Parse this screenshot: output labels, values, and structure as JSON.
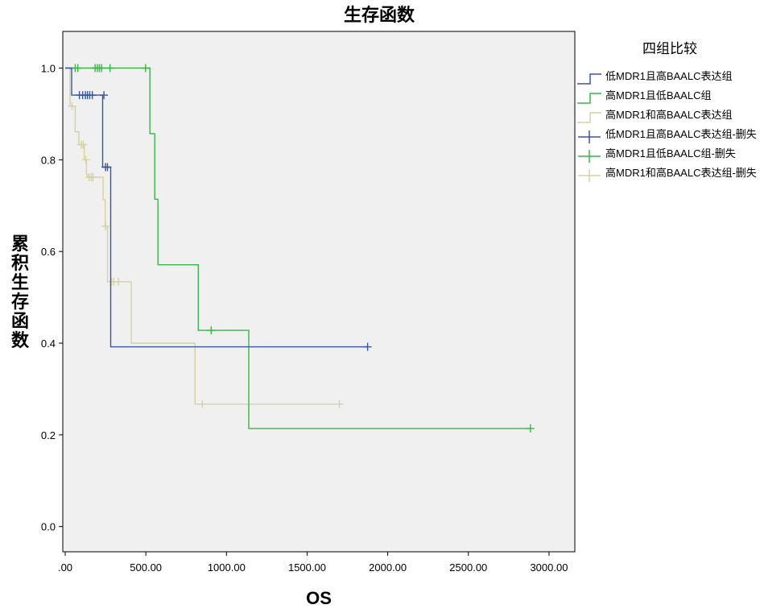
{
  "chart_data": {
    "type": "line",
    "title": "生存函数",
    "xlabel": "OS",
    "ylabel": "累积生存函数",
    "xlim": [
      -15,
      3160
    ],
    "ylim": [
      -0.055,
      1.08
    ],
    "x_ticks": [
      0,
      500,
      1000,
      1500,
      2000,
      2500,
      3000
    ],
    "x_tick_labels": [
      ".00",
      "500.00",
      "1000.00",
      "1500.00",
      "2000.00",
      "2500.00",
      "3000.00"
    ],
    "y_ticks": [
      0,
      0.2,
      0.4,
      0.6,
      0.8,
      1.0
    ],
    "y_tick_labels": [
      "0.0",
      "0.2",
      "0.4",
      "0.6",
      "0.8",
      "1.0"
    ],
    "grid": false,
    "legend_title": "四组比较",
    "legend_position": "right",
    "series": [
      {
        "name": "低MDR1且高BAALC表达组",
        "color": "#3a55a4",
        "censor_label": "低MDR1且高BAALC表达组-删失",
        "steps": [
          [
            0,
            1.0
          ],
          [
            40,
            1.0
          ],
          [
            40,
            0.941
          ],
          [
            232,
            0.941
          ],
          [
            232,
            0.784
          ],
          [
            282,
            0.784
          ],
          [
            282,
            0.392
          ],
          [
            1875,
            0.392
          ]
        ],
        "censored": [
          [
            88,
            0.941
          ],
          [
            108,
            0.941
          ],
          [
            125,
            0.941
          ],
          [
            138,
            0.941
          ],
          [
            152,
            0.941
          ],
          [
            168,
            0.941
          ],
          [
            240,
            0.941
          ],
          [
            250,
            0.784
          ],
          [
            262,
            0.784
          ],
          [
            1875,
            0.392
          ]
        ]
      },
      {
        "name": "高MDR1且低BAALC组",
        "color": "#3cb44b",
        "censor_label": "高MDR1且低BAALC组-删失",
        "steps": [
          [
            0,
            1.0
          ],
          [
            525,
            1.0
          ],
          [
            525,
            0.857
          ],
          [
            555,
            0.857
          ],
          [
            555,
            0.714
          ],
          [
            575,
            0.714
          ],
          [
            575,
            0.571
          ],
          [
            825,
            0.571
          ],
          [
            825,
            0.428
          ],
          [
            1138,
            0.428
          ],
          [
            1138,
            0.214
          ],
          [
            2885,
            0.214
          ]
        ],
        "censored": [
          [
            62,
            1.0
          ],
          [
            78,
            1.0
          ],
          [
            185,
            1.0
          ],
          [
            200,
            1.0
          ],
          [
            212,
            1.0
          ],
          [
            225,
            1.0
          ],
          [
            278,
            1.0
          ],
          [
            498,
            1.0
          ],
          [
            905,
            0.428
          ],
          [
            2885,
            0.214
          ]
        ]
      },
      {
        "name": "高MDR1和高BAALC表达组",
        "color": "#d4d2a0",
        "censor_label": "高MDR1和高BAALC表达组-删失",
        "steps": [
          [
            0,
            1.0
          ],
          [
            30,
            1.0
          ],
          [
            30,
            0.917
          ],
          [
            62,
            0.917
          ],
          [
            62,
            0.861
          ],
          [
            85,
            0.861
          ],
          [
            85,
            0.833
          ],
          [
            118,
            0.833
          ],
          [
            118,
            0.8
          ],
          [
            132,
            0.8
          ],
          [
            132,
            0.767
          ],
          [
            140,
            0.767
          ],
          [
            140,
            0.762
          ],
          [
            235,
            0.762
          ],
          [
            235,
            0.713
          ],
          [
            248,
            0.713
          ],
          [
            248,
            0.655
          ],
          [
            262,
            0.655
          ],
          [
            262,
            0.534
          ],
          [
            410,
            0.534
          ],
          [
            410,
            0.4
          ],
          [
            805,
            0.4
          ],
          [
            805,
            0.267
          ],
          [
            1700,
            0.267
          ]
        ],
        "censored": [
          [
            42,
            0.917
          ],
          [
            100,
            0.833
          ],
          [
            112,
            0.833
          ],
          [
            128,
            0.8
          ],
          [
            148,
            0.762
          ],
          [
            162,
            0.762
          ],
          [
            172,
            0.762
          ],
          [
            250,
            0.655
          ],
          [
            285,
            0.534
          ],
          [
            300,
            0.534
          ],
          [
            330,
            0.534
          ],
          [
            850,
            0.267
          ],
          [
            1700,
            0.267
          ]
        ]
      }
    ]
  }
}
